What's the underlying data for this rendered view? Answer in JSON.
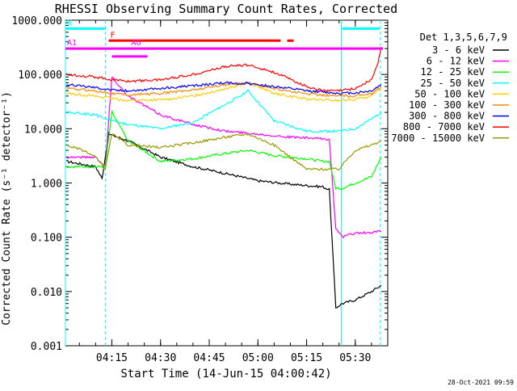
{
  "chart_data": {
    "type": "line",
    "title": "RHESSI Observing Summary Count Rates, Corrected",
    "xlabel": "Start Time (14-Jun-15 04:00:42)",
    "ylabel": "Corrected Count Rate (s⁻¹ detector⁻¹)",
    "y_scale": "log",
    "ylim": [
      0.001,
      1000
    ],
    "xlim": [
      "04:00:42",
      "05:40:00"
    ],
    "x_ticks": [
      "04:15",
      "04:30",
      "04:45",
      "05:00",
      "05:15",
      "05:30"
    ],
    "y_ticks": [
      "1000.000",
      "100.000",
      "10.000",
      "1.000",
      "0.100",
      "0.010",
      "0.001"
    ],
    "legend_title": "Det 1,3,5,6,7,9",
    "legend_position": "right",
    "timestamp": "28-Oct-2021 09:59",
    "series": [
      {
        "name": "3 - 6 keV",
        "color": "#000000",
        "x": [
          "04:01",
          "04:10",
          "04:12",
          "04:14",
          "04:20",
          "04:30",
          "04:40",
          "04:50",
          "05:00",
          "05:10",
          "05:20",
          "05:22",
          "05:24",
          "05:26",
          "05:30",
          "05:35",
          "05:38"
        ],
        "values": [
          2.5,
          2.0,
          1.2,
          8,
          6,
          3,
          2,
          1.5,
          1.1,
          0.95,
          0.85,
          0.75,
          0.005,
          0.006,
          0.007,
          0.01,
          0.013
        ]
      },
      {
        "name": "6 - 12 keV",
        "color": "#ff00ff",
        "x": [
          "04:01",
          "04:10",
          "04:13",
          "04:15",
          "04:20",
          "04:30",
          "04:40",
          "04:50",
          "05:00",
          "05:10",
          "05:20",
          "05:22",
          "05:24",
          "05:26",
          "05:30",
          "05:35",
          "05:38"
        ],
        "values": [
          3,
          3,
          2,
          90,
          40,
          18,
          12,
          9,
          8,
          7,
          6.5,
          6.3,
          0.15,
          0.1,
          0.12,
          0.12,
          0.13
        ]
      },
      {
        "name": "12 - 25 keV",
        "color": "#00ff00",
        "x": [
          "04:01",
          "04:10",
          "04:13",
          "04:15",
          "04:20",
          "04:30",
          "04:40",
          "04:50",
          "04:57",
          "05:05",
          "05:15",
          "05:20",
          "05:22",
          "05:24",
          "05:26",
          "05:30",
          "05:35",
          "05:38"
        ],
        "values": [
          2,
          2,
          2,
          20,
          6,
          2.5,
          2.8,
          3.5,
          4,
          3.2,
          2.8,
          2.5,
          2.5,
          0.8,
          0.8,
          1,
          1.3,
          3
        ]
      },
      {
        "name": "25 - 50 keV",
        "color": "#00ffff",
        "x": [
          "04:01",
          "04:10",
          "04:15",
          "04:20",
          "04:30",
          "04:40",
          "04:50",
          "04:57",
          "05:05",
          "05:15",
          "05:20",
          "05:25",
          "05:30",
          "05:35",
          "05:38"
        ],
        "values": [
          20,
          18,
          14,
          12,
          10,
          13,
          28,
          50,
          14,
          9,
          9,
          9,
          10,
          15,
          20
        ]
      },
      {
        "name": "50 - 100 keV",
        "color": "#ffcc00",
        "x": [
          "04:01",
          "04:10",
          "04:15",
          "04:20",
          "04:30",
          "04:40",
          "04:50",
          "04:57",
          "05:05",
          "05:15",
          "05:25",
          "05:30",
          "05:35",
          "05:38"
        ],
        "values": [
          45,
          40,
          36,
          33,
          34,
          40,
          55,
          70,
          45,
          35,
          33,
          35,
          40,
          55
        ]
      },
      {
        "name": "100 - 300 keV",
        "color": "#ff8800",
        "x": [
          "04:01",
          "04:10",
          "04:15",
          "04:20",
          "04:30",
          "04:40",
          "04:50",
          "04:57",
          "05:05",
          "05:15",
          "05:25",
          "05:30",
          "05:35",
          "05:38"
        ],
        "values": [
          55,
          50,
          45,
          42,
          45,
          52,
          65,
          70,
          55,
          44,
          40,
          40,
          45,
          60
        ]
      },
      {
        "name": "300 - 800 keV",
        "color": "#0000ff",
        "x": [
          "04:01",
          "04:10",
          "04:15",
          "04:20",
          "04:30",
          "04:40",
          "04:50",
          "04:57",
          "05:05",
          "05:15",
          "05:25",
          "05:30",
          "05:35",
          "05:38"
        ],
        "values": [
          65,
          58,
          52,
          50,
          55,
          62,
          70,
          68,
          60,
          50,
          45,
          46,
          50,
          65
        ]
      },
      {
        "name": "800 - 7000 keV",
        "color": "#ff0000",
        "x": [
          "04:01",
          "04:10",
          "04:15",
          "04:20",
          "04:30",
          "04:40",
          "04:50",
          "04:57",
          "05:05",
          "05:15",
          "05:20",
          "05:25",
          "05:30",
          "05:35",
          "05:37",
          "05:38"
        ],
        "values": [
          100,
          90,
          80,
          75,
          80,
          100,
          140,
          150,
          110,
          60,
          50,
          50,
          55,
          80,
          160,
          320
        ]
      },
      {
        "name": "7000 - 15000 keV",
        "color": "#999900",
        "x": [
          "04:01",
          "04:06",
          "04:10",
          "04:13",
          "04:15",
          "04:20",
          "04:30",
          "04:40",
          "04:50",
          "04:57",
          "05:05",
          "05:10",
          "05:15",
          "05:20",
          "05:25",
          "05:28",
          "05:30",
          "05:35",
          "05:38"
        ],
        "values": [
          5,
          4,
          3,
          1.8,
          8,
          5,
          4.5,
          5.5,
          7,
          8,
          5,
          3,
          1.8,
          1.8,
          1.8,
          3,
          4,
          5,
          6
        ]
      }
    ],
    "annotations": [
      {
        "label": "N",
        "color": "#00ffff",
        "segments": [
          [
            "04:00:42",
            "04:13:00"
          ],
          [
            "05:26:00",
            "05:37:30"
          ]
        ],
        "value": 700
      },
      {
        "label": "F",
        "color": "#ff0000",
        "segments": [
          [
            "04:14:00",
            "05:07:00"
          ],
          [
            "05:09:00",
            "05:11:00"
          ]
        ],
        "value": 420
      },
      {
        "label": "AO",
        "color": "#ff00ff",
        "segments": [
          [
            "04:20:30",
            "04:20:50"
          ]
        ],
        "value": 300
      },
      {
        "label": "A1",
        "color": "#ff00ff",
        "segments": [
          [
            "04:00:42",
            "05:38:30"
          ]
        ],
        "value": 300
      },
      {
        "label": "",
        "color": "#ff00ff",
        "segments": [
          [
            "04:15:00",
            "04:26:00"
          ]
        ],
        "value": 215
      }
    ],
    "vlines": [
      {
        "time": "04:00:42",
        "color": "#00ffff",
        "dashed": false
      },
      {
        "time": "04:13:00",
        "color": "#00ffff",
        "dashed": true
      },
      {
        "time": "05:25:42",
        "color": "#00ffff",
        "dashed": false
      },
      {
        "time": "05:37:42",
        "color": "#00ffff",
        "dashed": true
      }
    ]
  }
}
